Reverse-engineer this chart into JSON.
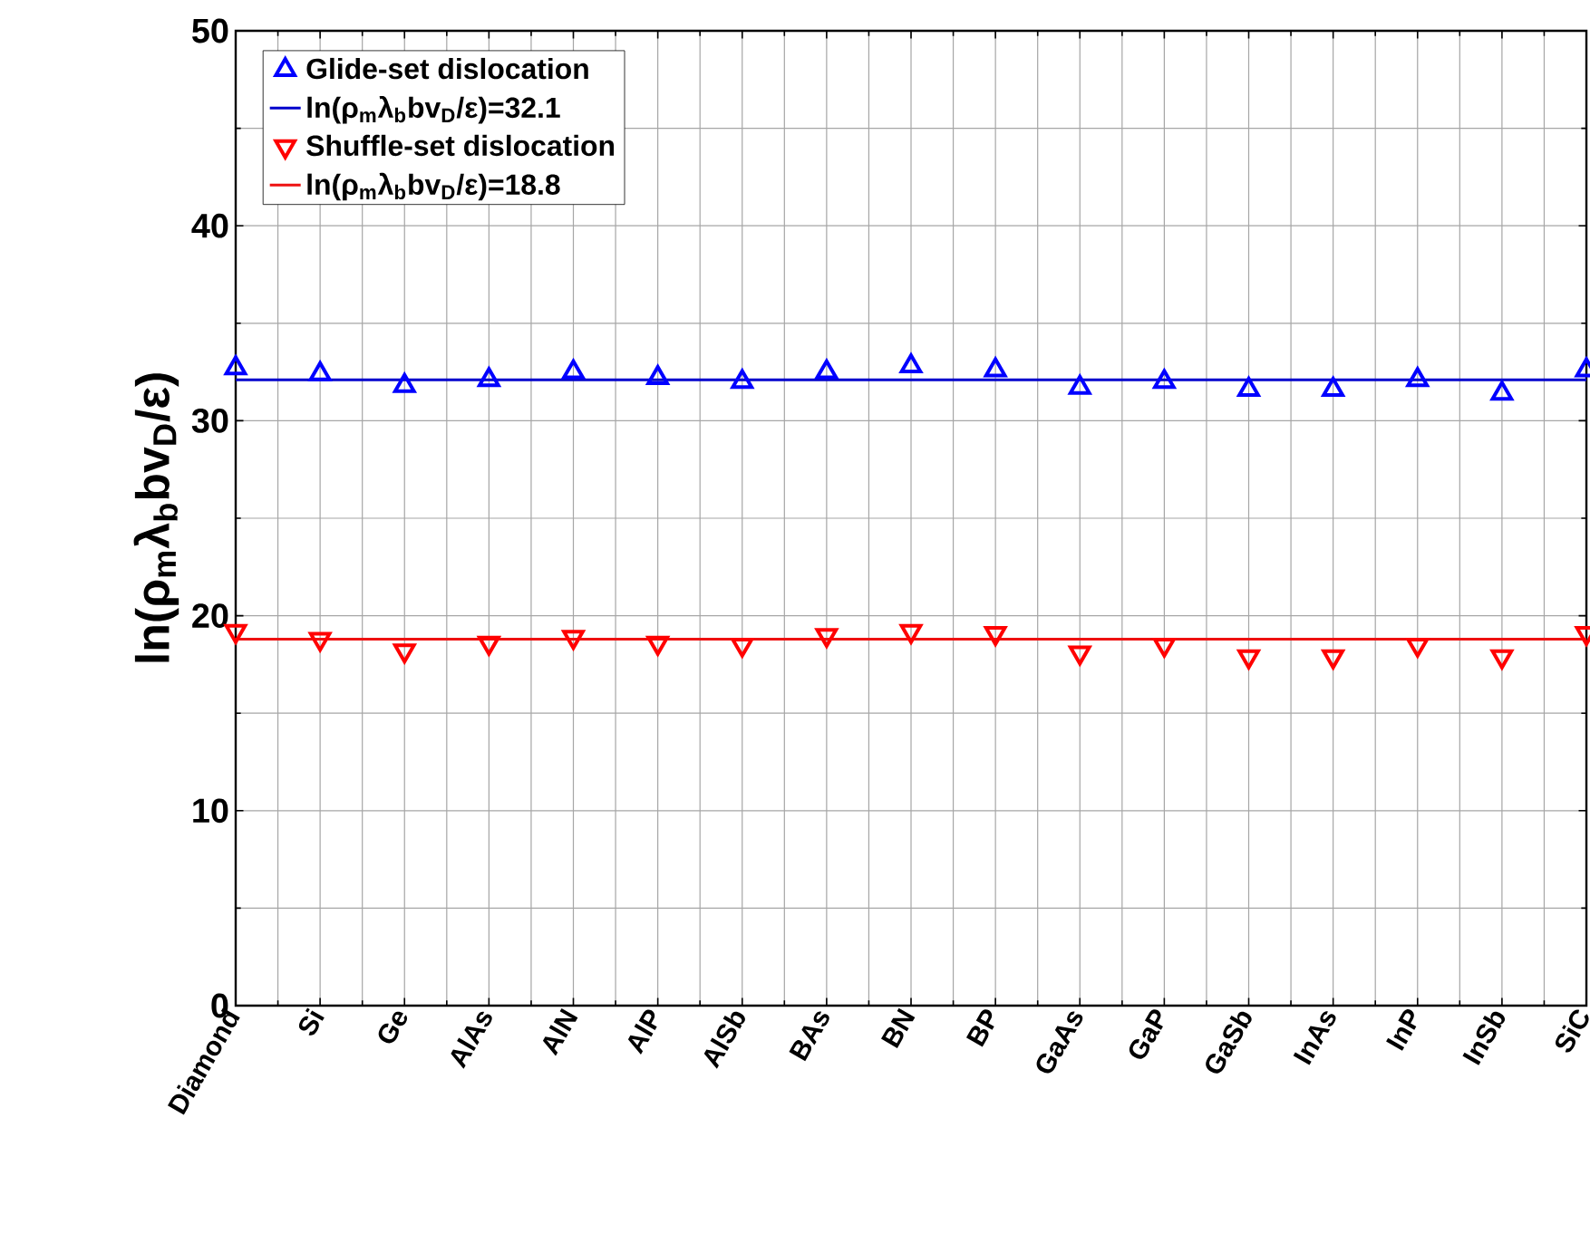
{
  "chart_data": {
    "type": "scatter",
    "ylabel": "ln(ρ$_{m}$λ$_{b}$bv$_{D}$/ε)",
    "categories": [
      "Diamond",
      "Si",
      "Ge",
      "AlAs",
      "AlN",
      "AlP",
      "AlSb",
      "BAs",
      "BN",
      "BP",
      "GaAs",
      "GaP",
      "GaSb",
      "InAs",
      "InP",
      "InSb",
      "SiC"
    ],
    "series": [
      {
        "name": "Glide-set dislocation",
        "color": "#0000ff",
        "marker": "triangle",
        "values": [
          32.7,
          32.4,
          31.8,
          32.1,
          32.5,
          32.2,
          32.0,
          32.5,
          32.8,
          32.6,
          31.7,
          32.0,
          31.6,
          31.6,
          32.1,
          31.4,
          32.6
        ]
      },
      {
        "name": "Shuffle-set dislocation",
        "color": "#ff0000",
        "marker": "triangle down",
        "values": [
          19.2,
          18.8,
          18.2,
          18.6,
          18.9,
          18.6,
          18.5,
          19.0,
          19.2,
          19.1,
          18.1,
          18.5,
          17.9,
          17.9,
          18.5,
          17.9,
          19.1
        ]
      }
    ],
    "ref_lines": [
      {
        "axis": "y",
        "value": 32.1,
        "label": "ln(ρ$_{m}$λ$_{b}$bv$_{D}$/ε)=32.1",
        "color": "#0000cc"
      },
      {
        "axis": "y",
        "value": 18.8,
        "label": "ln(ρ$_{m}$λ$_{b}$bv$_{D}$/ε)=18.8",
        "color": "#ee1111"
      }
    ],
    "ylim": [
      0,
      50
    ],
    "yticks": [
      0,
      10,
      20,
      30,
      40,
      50
    ],
    "grid": true,
    "legend": "top left"
  }
}
